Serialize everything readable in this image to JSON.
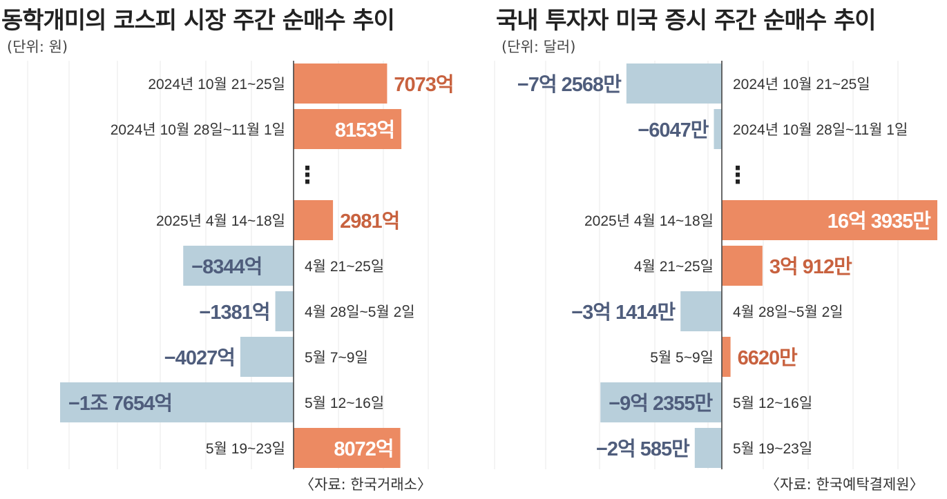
{
  "chart_data": [
    {
      "type": "bar",
      "orientation": "horizontal",
      "title": "동학개미의 코스피 시장 주간 순매수 추이",
      "unit_label": "(단위: 원)",
      "source": "〈자료: 한국거래소〉",
      "gap_marker": "⋮",
      "colors": {
        "positive": "#ec8a62",
        "negative": "#b8cfdb",
        "positive_text": "#c8623f",
        "negative_text": "#4f5d7c"
      },
      "rows": [
        {
          "category": "2024년 10월 21~25일",
          "value": 7073,
          "label": "7073억"
        },
        {
          "category": "2024년 10월 28일~11월 1일",
          "value": 8153,
          "label": "8153억"
        },
        {
          "gap": true
        },
        {
          "category": "2025년 4월 14~18일",
          "value": 2981,
          "label": "2981억"
        },
        {
          "category": "4월 21~25일",
          "value": -8344,
          "label": "−8344억"
        },
        {
          "category": "4월 28일~5월 2일",
          "value": -1381,
          "label": "−1381억"
        },
        {
          "category": "5월 7~9일",
          "value": -4027,
          "label": "−4027억"
        },
        {
          "category": "5월 12~16일",
          "value": -17654,
          "label": "−1조 7654억"
        },
        {
          "category": "5월 19~23일",
          "value": 8072,
          "label": "8072억"
        }
      ]
    },
    {
      "type": "bar",
      "orientation": "horizontal",
      "title": "국내 투자자 미국 증시 주간 순매수 추이",
      "unit_label": "(단위: 달러)",
      "source": "〈자료: 한국예탁결제원〉",
      "gap_marker": "⋮",
      "colors": {
        "positive": "#ec8a62",
        "negative": "#b8cfdb",
        "positive_text": "#c8623f",
        "negative_text": "#4f5d7c"
      },
      "rows": [
        {
          "category": "2024년 10월 21~25일",
          "value": -72568,
          "label": "−7억 2568만"
        },
        {
          "category": "2024년 10월 28일~11월 1일",
          "value": -6047,
          "label": "−6047만"
        },
        {
          "gap": true
        },
        {
          "category": "2025년 4월 14~18일",
          "value": 163935,
          "label": "16억 3935만"
        },
        {
          "category": "4월 21~25일",
          "value": 30912,
          "label": "3억 912만"
        },
        {
          "category": "4월 28일~5월 2일",
          "value": -31414,
          "label": "−3억 1414만"
        },
        {
          "category": "5월 5~9일",
          "value": 6620,
          "label": "6620만"
        },
        {
          "category": "5월 12~16일",
          "value": -92355,
          "label": "−9억 2355만"
        },
        {
          "category": "5월 19~23일",
          "value": -20585,
          "label": "−2억 585만"
        }
      ]
    }
  ]
}
